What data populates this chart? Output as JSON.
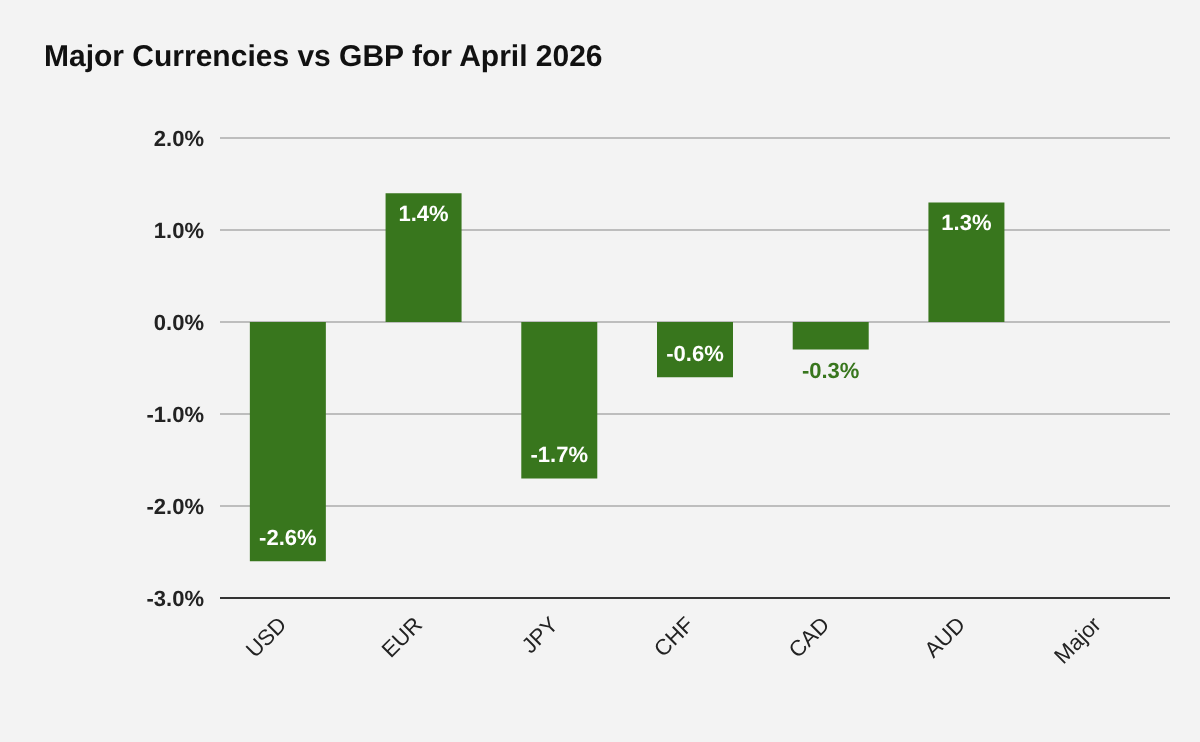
{
  "chart_data": {
    "type": "bar",
    "title": "Major Currencies vs GBP for April 2026",
    "categories": [
      "USD",
      "EUR",
      "JPY",
      "CHF",
      "CAD",
      "AUD",
      "Major"
    ],
    "series": [
      {
        "color": "#38761d",
        "values": [
          -2.6,
          1.4,
          -1.7,
          -0.6,
          -0.3,
          1.3,
          null
        ],
        "value_labels": [
          "-2.6%",
          "1.4%",
          "-1.7%",
          "-0.6%",
          "-0.3%",
          "1.3%",
          null
        ]
      }
    ],
    "ylim": [
      -3,
      2
    ],
    "yticks": [
      {
        "value": -3,
        "label": "-3.0%"
      },
      {
        "value": -2,
        "label": "-2.0%"
      },
      {
        "value": -1,
        "label": "-1.0%"
      },
      {
        "value": 0,
        "label": "0.0%"
      },
      {
        "value": 1,
        "label": "1.0%"
      },
      {
        "value": 2,
        "label": "2.0%"
      }
    ],
    "grid": "y"
  }
}
